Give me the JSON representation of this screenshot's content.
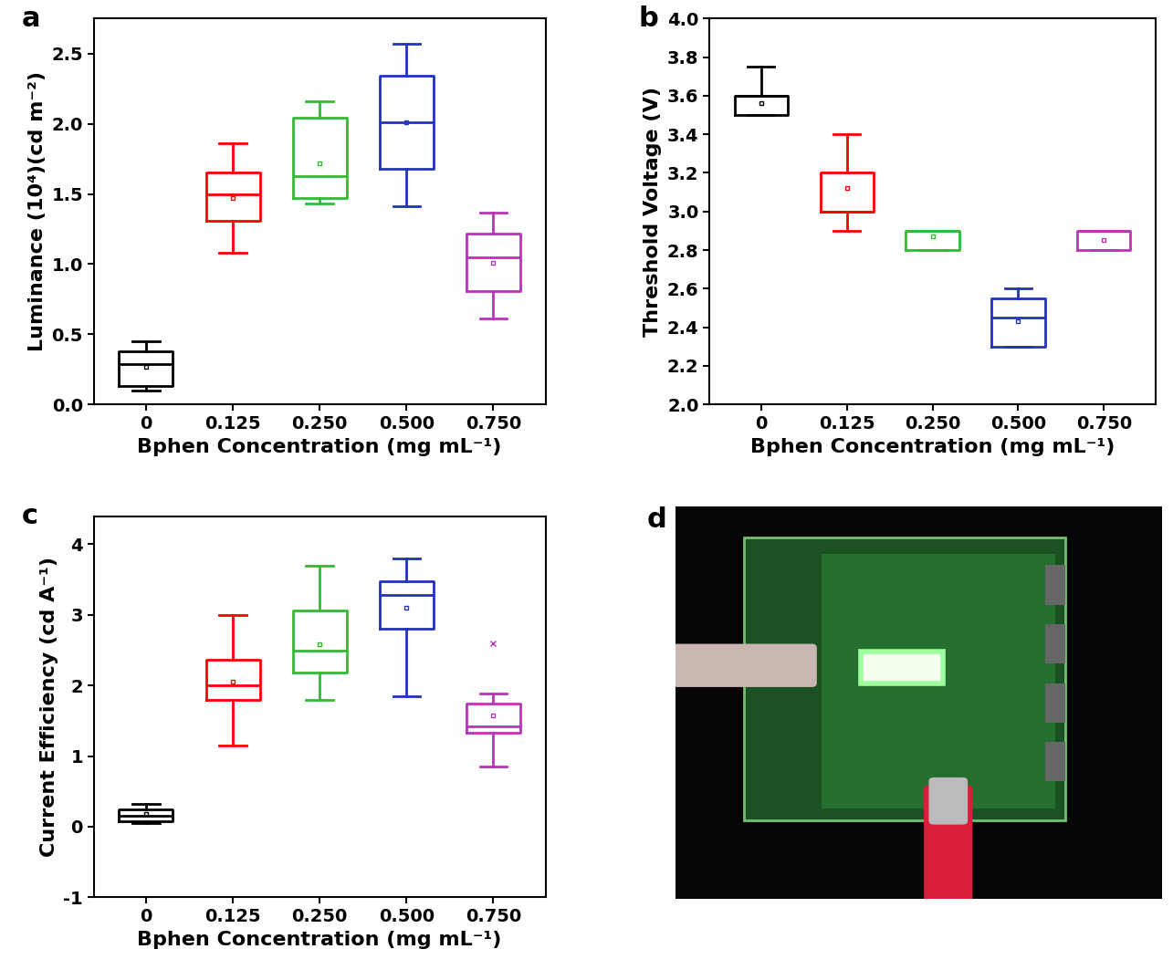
{
  "chart_data": [
    {
      "type": "box",
      "panel_label": "a",
      "xlabel": "Bphen Concentration (mg mL⁻¹)",
      "ylabel": "Luminance (10⁴)(cd m⁻²)",
      "categories": [
        "0",
        "0.125",
        "0.250",
        "0.500",
        "0.750"
      ],
      "colors": [
        "#000000",
        "#ff0000",
        "#33bb33",
        "#2233bb",
        "#bb33bb"
      ],
      "ylim": [
        0,
        2.75
      ],
      "yticks": [
        {
          "value": 0,
          "label": "0.0"
        },
        0.5,
        {
          "value": 1,
          "label": "1.0"
        },
        1.5,
        {
          "value": 2,
          "label": "2.0"
        },
        2.5
      ],
      "boxes": [
        {
          "min": 0.1,
          "q1": 0.13,
          "median": 0.29,
          "q3": 0.38,
          "max": 0.45,
          "mean": 0.27
        },
        {
          "min": 1.08,
          "q1": 1.31,
          "median": 1.5,
          "q3": 1.65,
          "max": 1.86,
          "mean": 1.47
        },
        {
          "min": 1.43,
          "q1": 1.47,
          "median": 1.63,
          "q3": 2.04,
          "max": 2.16,
          "mean": 1.72
        },
        {
          "min": 1.41,
          "q1": 1.68,
          "median": 2.01,
          "q3": 2.34,
          "max": 2.57,
          "mean": 2.01
        },
        {
          "min": 0.61,
          "q1": 0.81,
          "median": 1.05,
          "q3": 1.22,
          "max": 1.37,
          "mean": 1.01
        }
      ]
    },
    {
      "type": "box",
      "panel_label": "b",
      "xlabel": "Bphen Concentration (mg mL⁻¹)",
      "ylabel": "Threshold Voltage (V)",
      "categories": [
        "0",
        "0.125",
        "0.250",
        "0.500",
        "0.750"
      ],
      "colors": [
        "#000000",
        "#ff0000",
        "#33bb33",
        "#2233bb",
        "#bb33bb"
      ],
      "ylim": [
        2.0,
        4.0
      ],
      "yticks": [
        {
          "value": 2.0,
          "label": "2.0"
        },
        2.2,
        2.4,
        2.6,
        2.8,
        {
          "value": 3.0,
          "label": "3.0"
        },
        3.2,
        3.4,
        3.6,
        3.8,
        {
          "value": 4.0,
          "label": "4.0"
        }
      ],
      "boxes": [
        {
          "min": 3.5,
          "q1": 3.5,
          "median": 3.6,
          "q3": 3.6,
          "max": 3.75,
          "mean": 3.56
        },
        {
          "min": 2.9,
          "q1": 3.0,
          "median": 3.0,
          "q3": 3.2,
          "max": 3.4,
          "mean": 3.12
        },
        {
          "min": 2.8,
          "q1": 2.8,
          "median": 2.9,
          "q3": 2.9,
          "max": 2.9,
          "mean": 2.87
        },
        {
          "min": 2.3,
          "q1": 2.3,
          "median": 2.45,
          "q3": 2.55,
          "max": 2.6,
          "mean": 2.43
        },
        {
          "min": 2.8,
          "q1": 2.8,
          "median": 2.9,
          "q3": 2.9,
          "max": 2.9,
          "mean": 2.85
        }
      ]
    },
    {
      "type": "box",
      "panel_label": "c",
      "xlabel": "Bphen Concentration (mg mL⁻¹)",
      "ylabel": "Current Efficiency (cd A⁻¹)",
      "categories": [
        "0",
        "0.125",
        "0.250",
        "0.500",
        "0.750"
      ],
      "colors": [
        "#000000",
        "#ff0000",
        "#33bb33",
        "#2233bb",
        "#bb33bb"
      ],
      "ylim": [
        -1,
        4.4
      ],
      "yticks": [
        -1,
        0,
        1,
        2,
        3,
        4
      ],
      "boxes": [
        {
          "min": 0.05,
          "q1": 0.08,
          "median": 0.15,
          "q3": 0.25,
          "max": 0.32,
          "mean": 0.18
        },
        {
          "min": 1.15,
          "q1": 1.8,
          "median": 2.0,
          "q3": 2.37,
          "max": 3.0,
          "mean": 2.05
        },
        {
          "min": 1.8,
          "q1": 2.18,
          "median": 2.5,
          "q3": 3.06,
          "max": 3.7,
          "mean": 2.58
        },
        {
          "min": 1.85,
          "q1": 2.8,
          "median": 3.28,
          "q3": 3.48,
          "max": 3.8,
          "mean": 3.1
        },
        {
          "min": 0.85,
          "q1": 1.33,
          "median": 1.42,
          "q3": 1.75,
          "max": 1.88,
          "mean": 1.58,
          "outliers": [
            2.6
          ]
        }
      ]
    },
    {
      "type": "image",
      "panel_label": "d"
    }
  ]
}
